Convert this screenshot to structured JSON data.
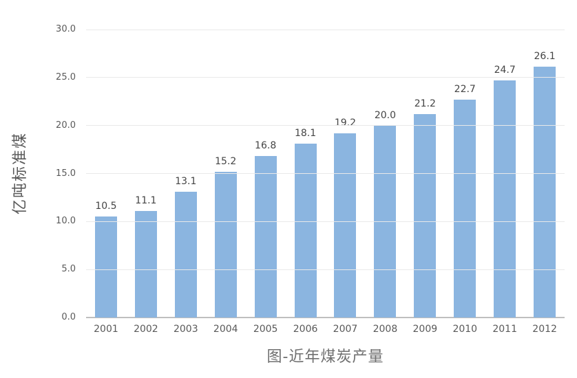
{
  "chart_data": {
    "type": "bar",
    "title": "图-近年煤炭产量",
    "ylabel": "亿吨标准煤",
    "xlabel": "",
    "categories": [
      "2001",
      "2002",
      "2003",
      "2004",
      "2005",
      "2006",
      "2007",
      "2008",
      "2009",
      "2010",
      "2011",
      "2012"
    ],
    "values": [
      10.5,
      11.1,
      13.1,
      15.2,
      16.8,
      18.1,
      19.2,
      20.0,
      21.2,
      22.7,
      24.7,
      26.1
    ],
    "data_labels": [
      "10.5",
      "11.1",
      "13.1",
      "15.2",
      "16.8",
      "18.1",
      "19.2",
      "20.0",
      "21.2",
      "22.7",
      "24.7",
      "26.1"
    ],
    "ylim": [
      0,
      30
    ],
    "yticks": [
      0,
      5,
      10,
      15,
      20,
      25,
      30
    ],
    "ytick_labels": [
      "0.0",
      "5.0",
      "10.0",
      "15.0",
      "20.0",
      "25.0",
      "30.0"
    ],
    "grid": true,
    "legend": "none",
    "colors": {
      "bar": "#8bb5e0",
      "gridline": "#e9e9e9",
      "axis_line": "#bfbfbf",
      "tick_label": "#595959",
      "data_label": "#444444",
      "title": "#6f6f6f",
      "background": "#ffffff"
    }
  }
}
